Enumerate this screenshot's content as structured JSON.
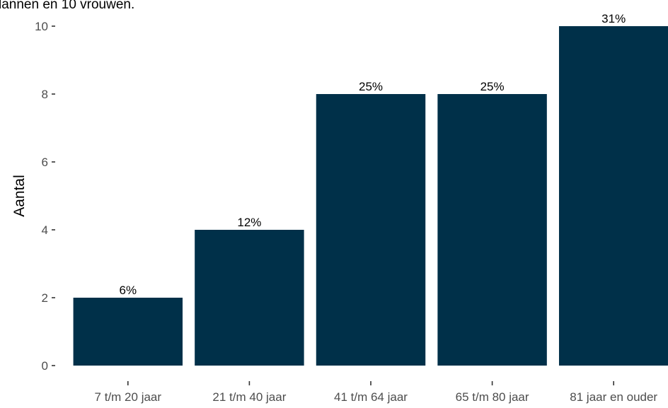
{
  "caption_text": "lannen en 10 vrouwen.",
  "chart_data": {
    "type": "bar",
    "categories": [
      "7 t/m 20 jaar",
      "21 t/m 40 jaar",
      "41 t/m 64 jaar",
      "65 t/m 80 jaar",
      "81 jaar en ouder"
    ],
    "values": [
      2,
      4,
      8,
      8,
      10
    ],
    "labels": [
      "6%",
      "12%",
      "25%",
      "25%",
      "31%"
    ],
    "xlabel": "",
    "ylabel": "Aantal",
    "ylim": [
      0,
      10
    ],
    "yticks": [
      0,
      2,
      4,
      6,
      8,
      10
    ],
    "bar_color": "#003049",
    "grid": false,
    "legend": "none"
  }
}
